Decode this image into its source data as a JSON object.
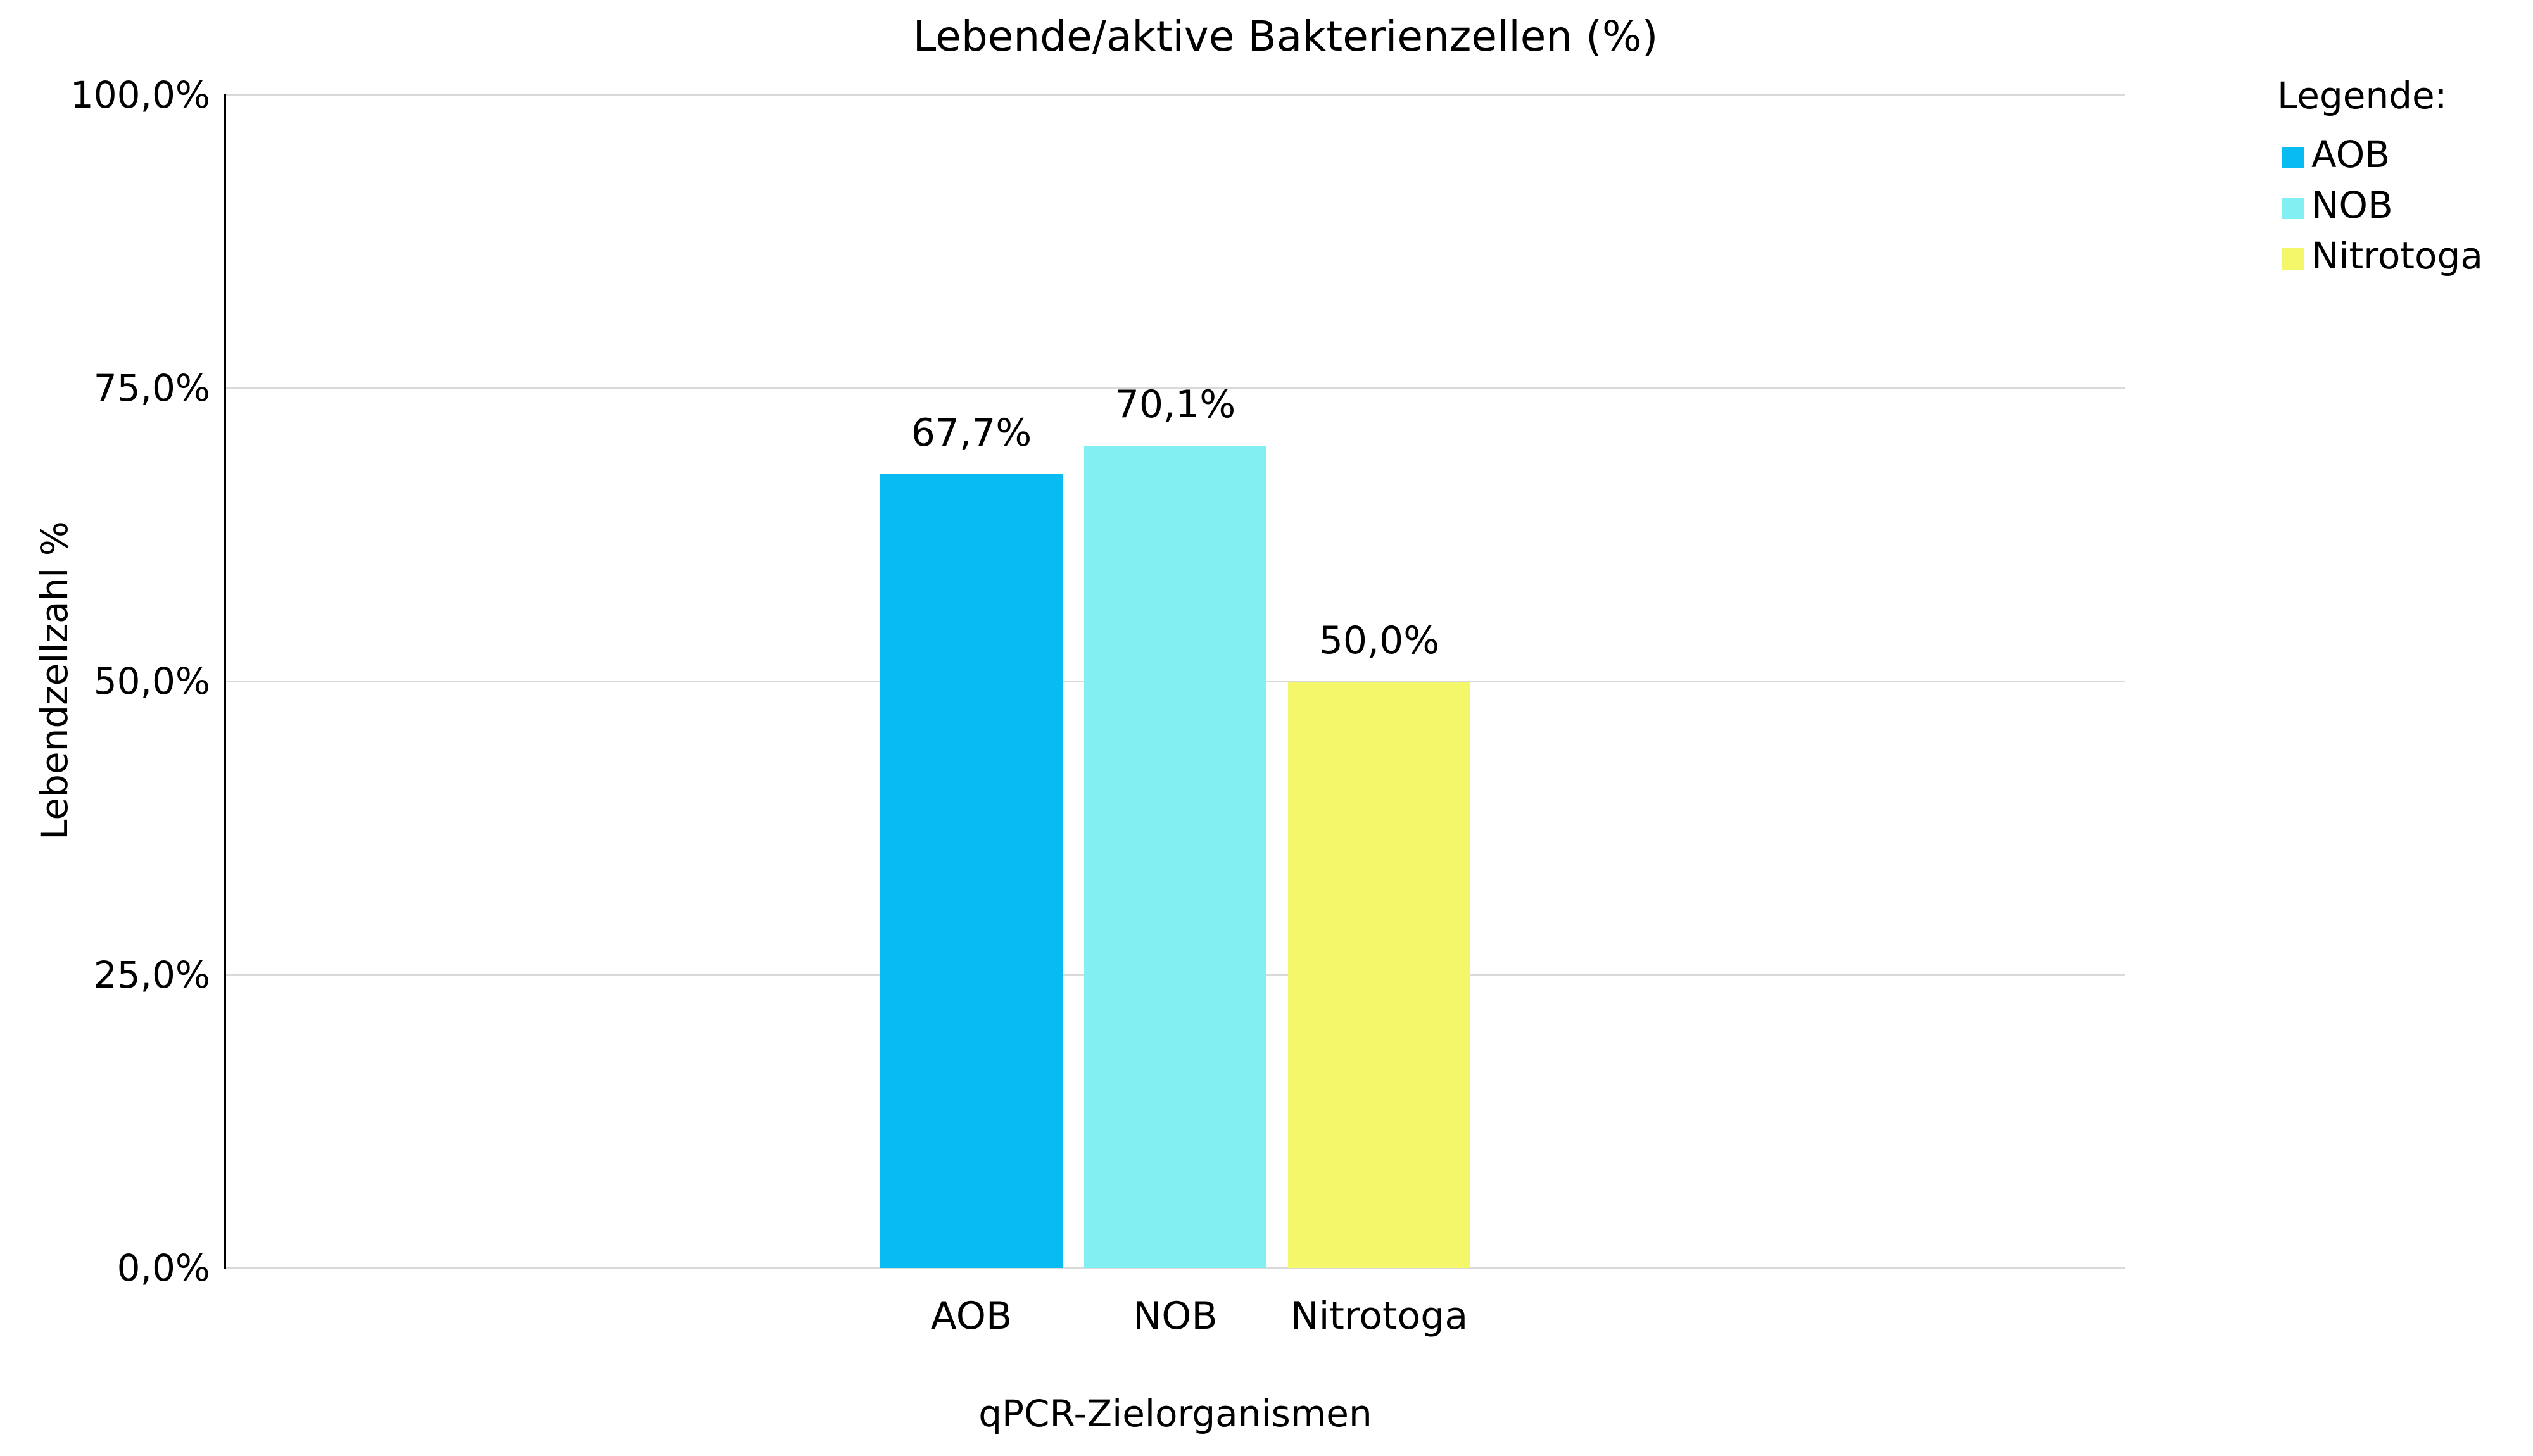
{
  "chart_data": {
    "type": "bar",
    "title": "Lebende/aktive Bakterienzellen (%)",
    "xlabel": "qPCR-Zielorganismen",
    "ylabel": "Lebendzellzahl %",
    "categories": [
      "AOB",
      "NOB",
      "Nitrotoga"
    ],
    "values": [
      67.7,
      70.1,
      50.0
    ],
    "value_labels": [
      "67,7%",
      "70,1%",
      "50,0%"
    ],
    "colors": [
      "#08BBF0",
      "#82F0F2",
      "#F4F76A"
    ],
    "ylim": [
      0,
      100
    ],
    "ytick_labels": [
      "100,0%",
      "75,0%",
      "50,0%",
      "25,0%",
      "0,0%"
    ],
    "grid": "horizontal gridlines at every 25%",
    "gridline_color": "#d9d9d9",
    "axis_line_color": "#000000",
    "legend_position": "top-right"
  },
  "legend": {
    "title": "Legende:",
    "items": [
      {
        "label": "AOB",
        "color": "#08BBF0"
      },
      {
        "label": "NOB",
        "color": "#82F0F2"
      },
      {
        "label": "Nitrotoga",
        "color": "#F4F76A"
      }
    ]
  }
}
